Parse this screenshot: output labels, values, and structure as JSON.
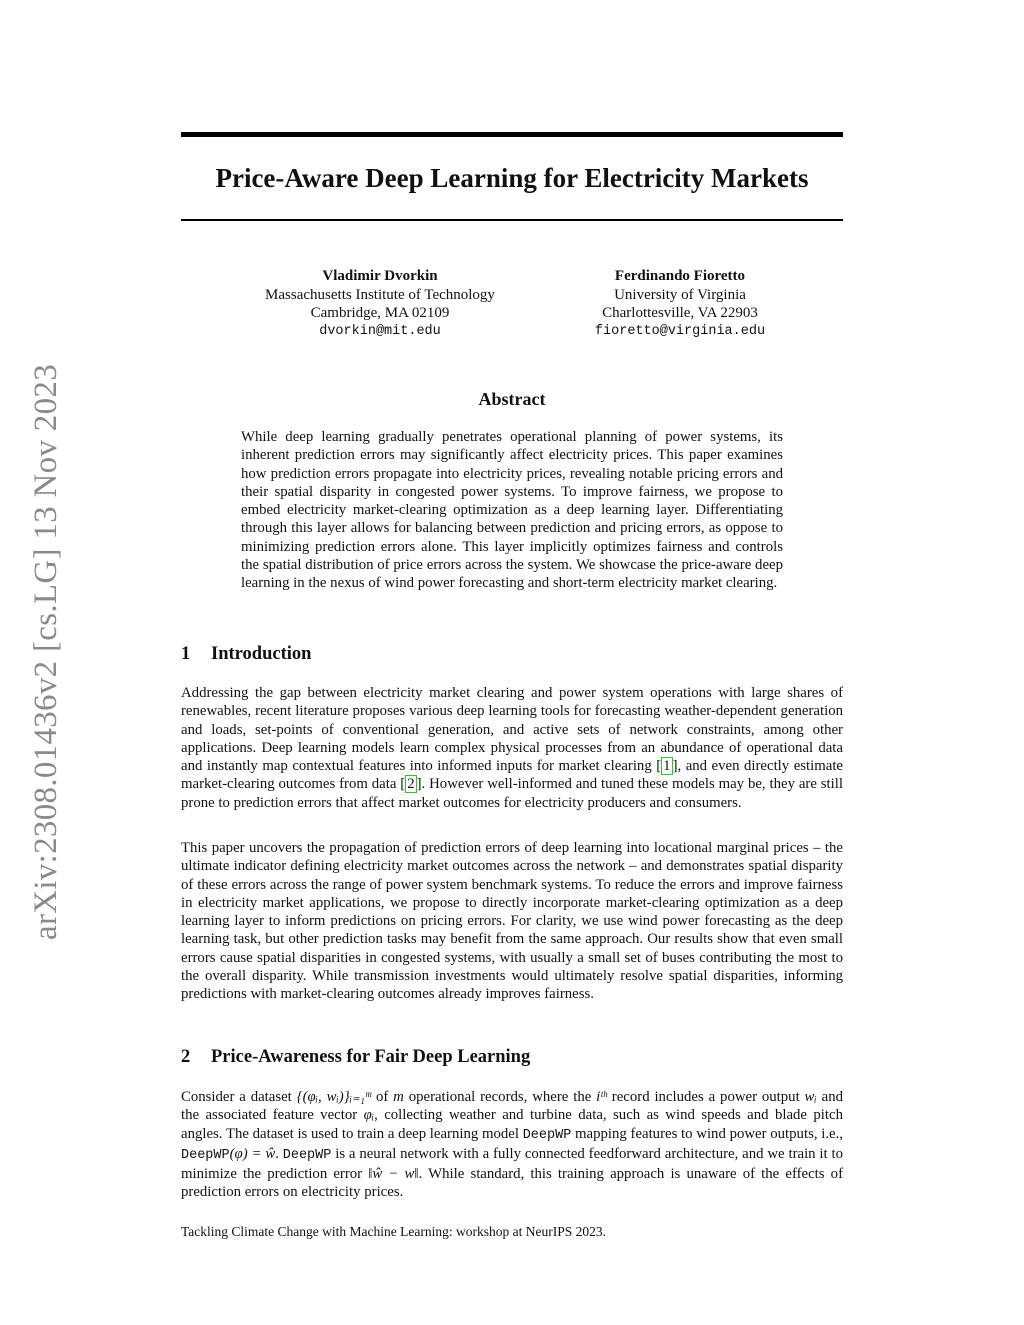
{
  "stamp": "arXiv:2308.01436v2  [cs.LG]  13 Nov 2023",
  "title": "Price-Aware Deep Learning for Electricity Markets",
  "authors": [
    {
      "name": "Vladimir  Dvorkin",
      "affiliation": "Massachusetts Institute of Technology",
      "location": "Cambridge, MA 02109",
      "email": "dvorkin@mit.edu"
    },
    {
      "name": "Ferdinando Fioretto",
      "affiliation": "University of Virginia",
      "location": "Charlottesville, VA 22903",
      "email": "fioretto@virginia.edu"
    }
  ],
  "abstract": {
    "heading": "Abstract",
    "text": "While deep learning gradually penetrates operational planning of power systems, its inherent prediction errors may significantly affect electricity prices. This paper examines how prediction errors propagate into electricity prices, revealing notable pricing errors and their spatial disparity in congested power systems. To improve fairness, we propose to embed electricity market-clearing optimization as a deep learning layer. Differentiating through this layer allows for balancing between prediction and pricing errors, as oppose to minimizing prediction errors alone. This layer implicitly optimizes fairness and controls the spatial distribution of price errors across the system. We showcase the price-aware deep learning in the nexus of wind power forecasting and short-term electricity market clearing."
  },
  "sections": [
    {
      "number": "1",
      "title": "Introduction",
      "p1": {
        "a": "Addressing the gap between electricity market clearing and power system operations with large shares of renewables, recent literature proposes various deep learning tools for forecasting weather-dependent generation and loads, set-points of conventional generation, and active sets of network constraints, among other applications. Deep learning models learn complex physical processes from an abundance of operational data and instantly map contextual features into informed inputs for market clearing [",
        "cite1": "1",
        "b": "], and even directly estimate market-clearing outcomes from data [",
        "cite2": "2",
        "c": "]. However well-informed and tuned these models may be, they are still prone to prediction errors that affect market outcomes for electricity producers and consumers."
      },
      "p2": "This paper uncovers the propagation of prediction errors of deep learning into locational marginal prices – the ultimate indicator defining electricity market outcomes across the network – and demonstrates spatial disparity of these errors across the range of power system benchmark systems. To reduce the errors and improve fairness in electricity market applications, we propose to directly incorporate market-clearing optimization as a deep learning layer to inform predictions on pricing errors. For clarity, we use wind power forecasting as the deep learning task, but other prediction tasks may benefit from the same approach. Our results show that even small errors cause spatial disparities in congested systems, with usually a small set of buses contributing the most to the overall disparity. While transmission investments would ultimately resolve spatial disparities, informing predictions with market-clearing outcomes already improves fairness."
    },
    {
      "number": "2",
      "title": "Price-Awareness for Fair Deep Learning",
      "p1": {
        "s1": "Consider a dataset ",
        "m1": "{(φᵢ, wᵢ)}ᵢ₌₁ᵐ",
        "s2": " of ",
        "m2": "m",
        "s3": " operational records, where the ",
        "m3": "iᵗʰ",
        "s4": " record includes a power output ",
        "m4": "wᵢ",
        "s5": " and the associated feature vector ",
        "m5": "φᵢ",
        "s6": ", collecting weather and turbine data, such as wind speeds and blade pitch angles. The dataset is used to train a deep learning model ",
        "c1": "DeepWP",
        "s7": " mapping features to wind power outputs, i.e., ",
        "c2": "DeepWP",
        "m6": "(φ) = ŵ",
        "s8": ". ",
        "c3": "DeepWP",
        "s9": " is a neural network with a fully connected feedforward architecture, and we train it to minimize the prediction error ",
        "m7": "‖ŵ − w‖",
        "s10": ". While standard, this training approach is unaware of the effects of prediction errors on electricity prices."
      }
    }
  ],
  "footer": "Tackling Climate Change with Machine Learning: workshop at NeurIPS 2023.",
  "colors": {
    "citation_box": "#22cc22",
    "stamp": "#8a8a8a"
  }
}
